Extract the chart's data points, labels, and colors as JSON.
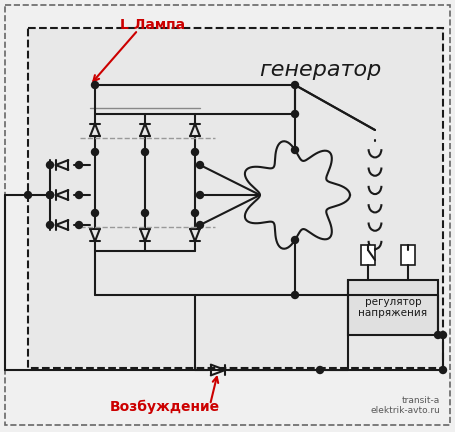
{
  "bg_color": "#f0f0f0",
  "inner_bg": "#e8e8e8",
  "line_color": "#1a1a1a",
  "red_color": "#cc0000",
  "title": "генератор",
  "label_lamp": "L Лампа",
  "label_excite": "Возбуждение",
  "label_regulator": "регулятор\nнапряжения",
  "watermark": "transit-a\nelektrik-avto.ru"
}
